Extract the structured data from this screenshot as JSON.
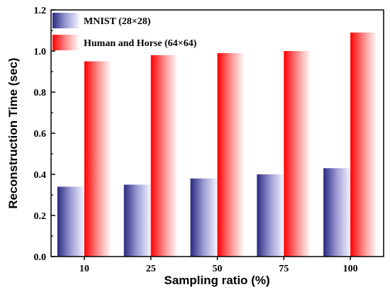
{
  "chart_data": {
    "type": "bar",
    "xlabel": "Sampling ratio (%)",
    "ylabel": "Reconstruction Time (sec)",
    "categories": [
      "10",
      "25",
      "50",
      "75",
      "100"
    ],
    "series": [
      {
        "name": "MNIST (28×28)",
        "values": [
          0.34,
          0.35,
          0.38,
          0.4,
          0.43
        ],
        "color": "#2a2a80"
      },
      {
        "name": "Human and Horse (64×64)",
        "values": [
          0.95,
          0.98,
          0.99,
          1.0,
          1.09
        ],
        "color": "#ff0000"
      }
    ],
    "ylim": [
      0,
      1.2
    ],
    "yticks": [
      "0.0",
      "0.2",
      "0.4",
      "0.6",
      "0.8",
      "1.0",
      "1.2"
    ],
    "legend_position": "top-left",
    "grid": false
  }
}
